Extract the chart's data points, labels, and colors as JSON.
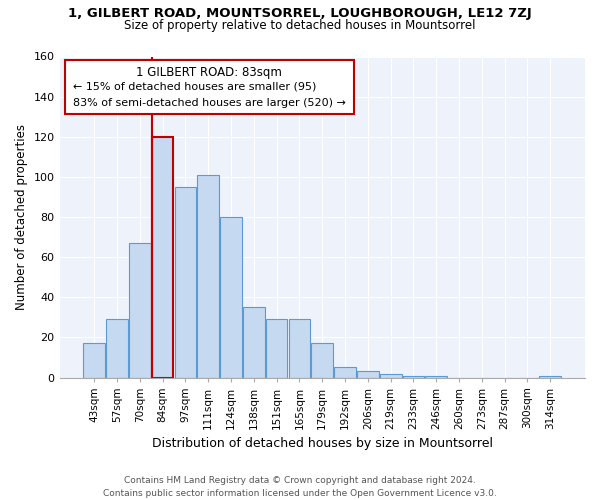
{
  "title1": "1, GILBERT ROAD, MOUNTSORREL, LOUGHBOROUGH, LE12 7ZJ",
  "title2": "Size of property relative to detached houses in Mountsorrel",
  "xlabel": "Distribution of detached houses by size in Mountsorrel",
  "ylabel": "Number of detached properties",
  "footnote": "Contains HM Land Registry data © Crown copyright and database right 2024.\nContains public sector information licensed under the Open Government Licence v3.0.",
  "bins": [
    "43sqm",
    "57sqm",
    "70sqm",
    "84sqm",
    "97sqm",
    "111sqm",
    "124sqm",
    "138sqm",
    "151sqm",
    "165sqm",
    "179sqm",
    "192sqm",
    "206sqm",
    "219sqm",
    "233sqm",
    "246sqm",
    "260sqm",
    "273sqm",
    "287sqm",
    "300sqm",
    "314sqm"
  ],
  "values": [
    17,
    29,
    67,
    120,
    95,
    101,
    80,
    35,
    29,
    29,
    17,
    5,
    3,
    2,
    1,
    1,
    0,
    0,
    0,
    0,
    1
  ],
  "bar_color": "#c5d9f0",
  "bar_edge_color": "#5b9bd5",
  "highlight_bar_index": 3,
  "highlight_edge_color": "#c00000",
  "annotation_lines": [
    "1 GILBERT ROAD: 83sqm",
    "← 15% of detached houses are smaller (95)",
    "83% of semi-detached houses are larger (520) →"
  ],
  "ylim": [
    0,
    160
  ],
  "yticks": [
    0,
    20,
    40,
    60,
    80,
    100,
    120,
    140,
    160
  ]
}
